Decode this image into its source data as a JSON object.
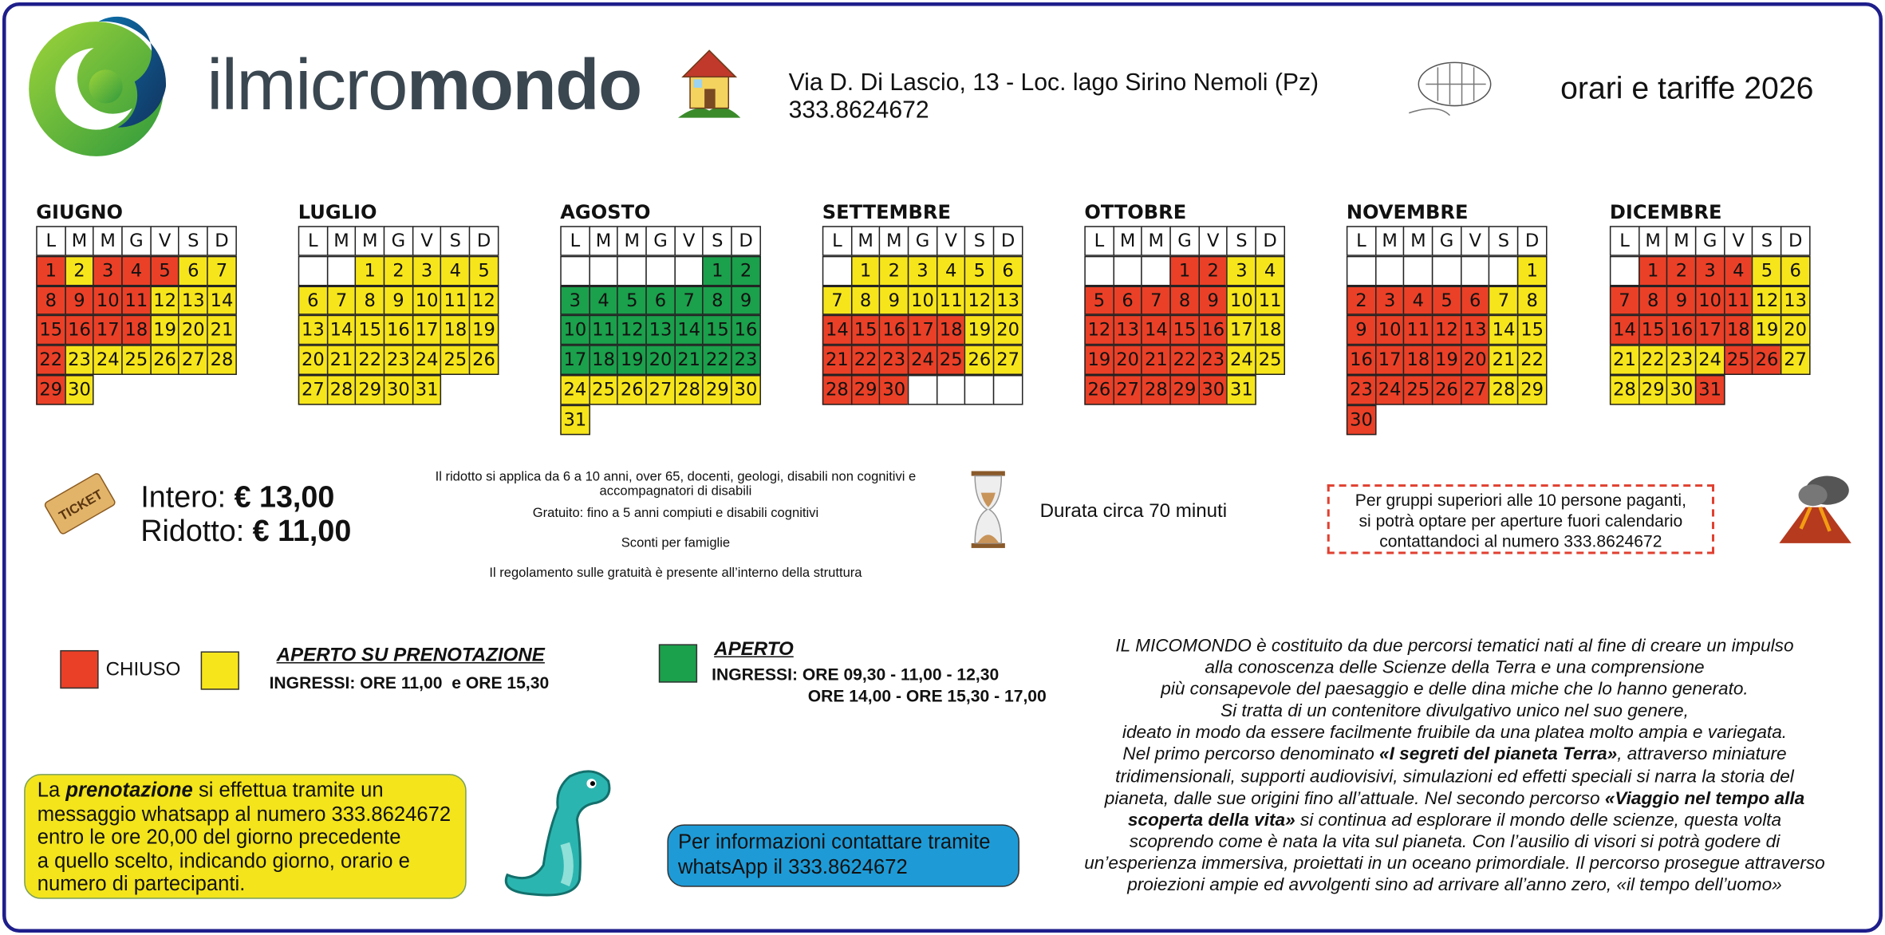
{
  "header": {
    "logo": {
      "part1": "il",
      "part2": "micro",
      "part3": "mondo"
    },
    "address": "Via D. Di Lascio, 13 - Loc. lago Sirino Nemoli (Pz)",
    "phone": "333.8624672",
    "tagline": "orari e tariffe 2026"
  },
  "weekdays": [
    "L",
    "M",
    "M",
    "G",
    "V",
    "S",
    "D"
  ],
  "calendars": [
    {
      "name": "GIUGNO",
      "weeks": [
        [
          1,
          2,
          3,
          4,
          5,
          6,
          7
        ],
        [
          8,
          9,
          10,
          11,
          12,
          13,
          14
        ],
        [
          15,
          16,
          17,
          18,
          19,
          20,
          21
        ],
        [
          22,
          23,
          24,
          25,
          26,
          27,
          28
        ],
        [
          29,
          30
        ]
      ],
      "colors": [
        [
          "#ea4027",
          "#f7e51b",
          "#ea4027",
          "#ea4027",
          "#ea4027",
          "#f7e51b",
          "#f7e51b"
        ],
        [
          "#ea4027",
          "#ea4027",
          "#ea4027",
          "#ea4027",
          "#f7e51b",
          "#f7e51b",
          "#f7e51b"
        ],
        [
          "#ea4027",
          "#ea4027",
          "#ea4027",
          "#ea4027",
          "#f7e51b",
          "#f7e51b",
          "#f7e51b"
        ],
        [
          "#ea4027",
          "#f7e51b",
          "#f7e51b",
          "#f7e51b",
          "#f7e51b",
          "#f7e51b",
          "#f7e51b"
        ],
        [
          "#ea4027",
          "#f7e51b"
        ]
      ]
    },
    {
      "name": "LUGLIO",
      "weeks": [
        [
          null,
          null,
          1,
          2,
          3,
          4,
          5
        ],
        [
          6,
          7,
          8,
          9,
          10,
          11,
          12
        ],
        [
          13,
          14,
          15,
          16,
          17,
          18,
          19
        ],
        [
          20,
          21,
          22,
          23,
          24,
          25,
          26
        ],
        [
          27,
          28,
          29,
          30,
          31
        ]
      ],
      "colors": [
        [
          null,
          null,
          "#f7e51b",
          "#f7e51b",
          "#f7e51b",
          "#f7e51b",
          "#f7e51b"
        ],
        [
          "#f7e51b",
          "#f7e51b",
          "#f7e51b",
          "#f7e51b",
          "#f7e51b",
          "#f7e51b",
          "#f7e51b"
        ],
        [
          "#f7e51b",
          "#f7e51b",
          "#f7e51b",
          "#f7e51b",
          "#f7e51b",
          "#f7e51b",
          "#f7e51b"
        ],
        [
          "#f7e51b",
          "#f7e51b",
          "#f7e51b",
          "#f7e51b",
          "#f7e51b",
          "#f7e51b",
          "#f7e51b"
        ],
        [
          "#f7e51b",
          "#f7e51b",
          "#f7e51b",
          "#f7e51b",
          "#f7e51b"
        ]
      ]
    },
    {
      "name": "AGOSTO",
      "weeks": [
        [
          null,
          null,
          null,
          null,
          null,
          1,
          2
        ],
        [
          3,
          4,
          5,
          6,
          7,
          8,
          9
        ],
        [
          10,
          11,
          12,
          13,
          14,
          15,
          16
        ],
        [
          17,
          18,
          19,
          20,
          21,
          22,
          23
        ],
        [
          24,
          25,
          26,
          27,
          28,
          29,
          30
        ],
        [
          31
        ]
      ],
      "colors": [
        [
          null,
          null,
          null,
          null,
          null,
          "#1ba04c",
          "#1ba04c"
        ],
        [
          "#1ba04c",
          "#1ba04c",
          "#1ba04c",
          "#1ba04c",
          "#1ba04c",
          "#1ba04c",
          "#1ba04c"
        ],
        [
          "#1ba04c",
          "#1ba04c",
          "#1ba04c",
          "#1ba04c",
          "#1ba04c",
          "#1ba04c",
          "#1ba04c"
        ],
        [
          "#1ba04c",
          "#1ba04c",
          "#1ba04c",
          "#1ba04c",
          "#1ba04c",
          "#1ba04c",
          "#1ba04c"
        ],
        [
          "#f7e51b",
          "#f7e51b",
          "#f7e51b",
          "#f7e51b",
          "#f7e51b",
          "#f7e51b",
          "#f7e51b"
        ],
        [
          "#f7e51b"
        ]
      ]
    },
    {
      "name": "SETTEMBRE",
      "weeks": [
        [
          null,
          1,
          2,
          3,
          4,
          5,
          6
        ],
        [
          7,
          8,
          9,
          10,
          11,
          12,
          13
        ],
        [
          14,
          15,
          16,
          17,
          18,
          19,
          20
        ],
        [
          21,
          22,
          23,
          24,
          25,
          26,
          27
        ],
        [
          28,
          29,
          30,
          null,
          null,
          null,
          null
        ]
      ],
      "colors": [
        [
          null,
          "#f7e51b",
          "#f7e51b",
          "#f7e51b",
          "#f7e51b",
          "#f7e51b",
          "#f7e51b"
        ],
        [
          "#f7e51b",
          "#f7e51b",
          "#f7e51b",
          "#f7e51b",
          "#f7e51b",
          "#f7e51b",
          "#f7e51b"
        ],
        [
          "#ea4027",
          "#ea4027",
          "#ea4027",
          "#ea4027",
          "#ea4027",
          "#f7e51b",
          "#f7e51b"
        ],
        [
          "#ea4027",
          "#ea4027",
          "#ea4027",
          "#ea4027",
          "#ea4027",
          "#f7e51b",
          "#f7e51b"
        ],
        [
          "#ea4027",
          "#ea4027",
          "#ea4027",
          null,
          null,
          null,
          null
        ]
      ]
    },
    {
      "name": "OTTOBRE",
      "weeks": [
        [
          null,
          null,
          null,
          1,
          2,
          3,
          4
        ],
        [
          5,
          6,
          7,
          8,
          9,
          10,
          11
        ],
        [
          12,
          13,
          14,
          15,
          16,
          17,
          18
        ],
        [
          19,
          20,
          21,
          22,
          23,
          24,
          25
        ],
        [
          26,
          27,
          28,
          29,
          30,
          31
        ]
      ],
      "colors": [
        [
          null,
          null,
          null,
          "#ea4027",
          "#ea4027",
          "#f7e51b",
          "#f7e51b"
        ],
        [
          "#ea4027",
          "#ea4027",
          "#ea4027",
          "#ea4027",
          "#ea4027",
          "#f7e51b",
          "#f7e51b"
        ],
        [
          "#ea4027",
          "#ea4027",
          "#ea4027",
          "#ea4027",
          "#ea4027",
          "#f7e51b",
          "#f7e51b"
        ],
        [
          "#ea4027",
          "#ea4027",
          "#ea4027",
          "#ea4027",
          "#ea4027",
          "#f7e51b",
          "#f7e51b"
        ],
        [
          "#ea4027",
          "#ea4027",
          "#ea4027",
          "#ea4027",
          "#ea4027",
          "#f7e51b"
        ]
      ]
    },
    {
      "name": "NOVEMBRE",
      "weeks": [
        [
          null,
          null,
          null,
          null,
          null,
          null,
          1
        ],
        [
          2,
          3,
          4,
          5,
          6,
          7,
          8
        ],
        [
          9,
          10,
          11,
          12,
          13,
          14,
          15
        ],
        [
          16,
          17,
          18,
          19,
          20,
          21,
          22
        ],
        [
          23,
          24,
          25,
          26,
          27,
          28,
          29
        ],
        [
          30
        ]
      ],
      "colors": [
        [
          null,
          null,
          null,
          null,
          null,
          null,
          "#f7e51b"
        ],
        [
          "#ea4027",
          "#ea4027",
          "#ea4027",
          "#ea4027",
          "#ea4027",
          "#f7e51b",
          "#f7e51b"
        ],
        [
          "#ea4027",
          "#ea4027",
          "#ea4027",
          "#ea4027",
          "#ea4027",
          "#f7e51b",
          "#f7e51b"
        ],
        [
          "#ea4027",
          "#ea4027",
          "#ea4027",
          "#ea4027",
          "#ea4027",
          "#f7e51b",
          "#f7e51b"
        ],
        [
          "#ea4027",
          "#ea4027",
          "#ea4027",
          "#ea4027",
          "#ea4027",
          "#f7e51b",
          "#f7e51b"
        ],
        [
          "#ea4027"
        ]
      ]
    },
    {
      "name": "DICEMBRE",
      "weeks": [
        [
          null,
          1,
          2,
          3,
          4,
          5,
          6
        ],
        [
          7,
          8,
          9,
          10,
          11,
          12,
          13
        ],
        [
          14,
          15,
          16,
          17,
          18,
          19,
          20
        ],
        [
          21,
          22,
          23,
          24,
          25,
          26,
          27
        ],
        [
          28,
          29,
          30,
          31
        ]
      ],
      "colors": [
        [
          null,
          "#ea4027",
          "#ea4027",
          "#ea4027",
          "#ea4027",
          "#f7e51b",
          "#f7e51b"
        ],
        [
          "#ea4027",
          "#ea4027",
          "#ea4027",
          "#ea4027",
          "#ea4027",
          "#f7e51b",
          "#f7e51b"
        ],
        [
          "#ea4027",
          "#ea4027",
          "#ea4027",
          "#ea4027",
          "#ea4027",
          "#f7e51b",
          "#f7e51b"
        ],
        [
          "#f7e51b",
          "#f7e51b",
          "#f7e51b",
          "#f7e51b",
          "#ea4027",
          "#ea4027",
          "#f7e51b"
        ],
        [
          "#f7e51b",
          "#f7e51b",
          "#f7e51b",
          "#ea4027"
        ]
      ]
    }
  ],
  "prices": [
    {
      "label": "Intero:",
      "value": "€ 13,00"
    },
    {
      "label": "Ridotto:",
      "value": "€ 11,00"
    }
  ],
  "notes": [
    "Il ridotto si applica da 6 a 10 anni, over 65, docenti, geologi, disabili non cognitivi e",
    "accompagnatori di disabili",
    "Gratuito: fino a 5 anni compiuti e disabili cognitivi",
    "Sconti per famiglie",
    "Il regolamento sulle gratuità è presente all’interno della struttura"
  ],
  "duration": "Durata circa 70 minuti",
  "groups": [
    "Per gruppi superiori alle 10 persone paganti,",
    "si potrà optare per aperture fuori calendario",
    "contattandoci al numero 333.8624672"
  ],
  "legend": {
    "closed": {
      "label": "CHIUSO",
      "color": "#ea4027"
    },
    "booking": {
      "title": "APERTO SU PRENOTAZIONE",
      "hours": "INGRESSI: ORE 11,00  e ORE 15,30",
      "color": "#f7e51b"
    },
    "open": {
      "title": "APERTO",
      "hours": [
        "INGRESSI: ORE 09,30 - 11,00 - 12,30",
        "ORE 14,00 - ORE 15,30 - 17,00"
      ],
      "color": "#1ba04c"
    }
  },
  "booking_note": {
    "lead": "La",
    "emphasis": "prenotazione",
    "lines": [
      "si effettua tramite un",
      "messaggio whatsapp al numero 333.8624672",
      "entro le ore 20,00 del giorno precedente",
      "a quello scelto, indicando giorno, orario e",
      "numero di partecipanti."
    ]
  },
  "contact": [
    "Per informazioni contattare tramite",
    "whatsApp il 333.8624672"
  ],
  "description": [
    [
      "IL MICOMONDO è costituito da due percorsi tematici nati al fine di creare un impulso"
    ],
    [
      "alla conoscenza delle Scienze della Terra e una comprensione"
    ],
    [
      "più consapevole del paesaggio e delle dina miche che lo hanno generato."
    ],
    [
      "Si tratta di un contenitore divulgativo unico nel suo genere,"
    ],
    [
      "ideato in modo da essere facilmente fruibile da una platea molto ampia e variegata."
    ],
    [
      "Nel primo percorso denominato ",
      "«I segreti del pianeta Terra»",
      ", attraverso miniature"
    ],
    [
      "tridimensionali, supporti audiovisivi, simulazioni ed effetti speciali si narra la storia del"
    ],
    [
      "pianeta, dalle sue origini fino all’attuale. Nel secondo percorso ",
      "«Viaggio nel tempo alla"
    ],
    [
      "",
      "scoperta della vita»",
      " si continua ad esplorare il mondo delle scienze, questa volta"
    ],
    [
      "scoprendo come è nata la vita sul pianeta. Con l’ausilio di visori si potrà godere di"
    ],
    [
      "un’esperienza immersiva, proiettati in un oceano primordiale. Il percorso prosegue attraverso"
    ],
    [
      "proiezioni ampie ed avvolgenti sino ad arrivare all’anno zero, «il tempo dell’uomo»"
    ]
  ]
}
